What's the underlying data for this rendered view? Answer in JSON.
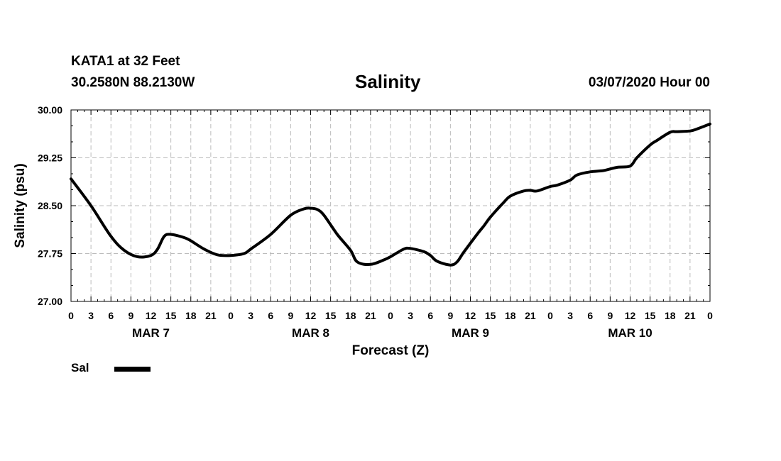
{
  "header": {
    "station": "KATA1 at 32 Feet",
    "coords": "30.2580N 88.2130W",
    "title": "Salinity",
    "datetime": "03/07/2020 Hour 00"
  },
  "legend": {
    "label": "Sal",
    "color": "#000000"
  },
  "chart_data": {
    "type": "line",
    "title": "Salinity",
    "xlabel": "Forecast (Z)",
    "ylabel": "Salinity (psu)",
    "ylim": [
      27.0,
      30.0
    ],
    "xlim_hours": [
      0,
      96
    ],
    "yticks": [
      "27.00",
      "27.75",
      "28.50",
      "29.25",
      "30.00"
    ],
    "ytick_values": [
      27.0,
      27.75,
      28.5,
      29.25,
      30.0
    ],
    "xtick_hours": [
      0,
      3,
      6,
      9,
      12,
      15,
      18,
      21,
      24,
      27,
      30,
      33,
      36,
      39,
      42,
      45,
      48,
      51,
      54,
      57,
      60,
      63,
      66,
      69,
      72,
      75,
      78,
      81,
      84,
      87,
      90,
      93,
      96
    ],
    "xtick_labels": [
      "0",
      "3",
      "6",
      "9",
      "12",
      "15",
      "18",
      "21",
      "0",
      "3",
      "6",
      "9",
      "12",
      "15",
      "18",
      "21",
      "0",
      "3",
      "6",
      "9",
      "12",
      "15",
      "18",
      "21",
      "0",
      "3",
      "6",
      "9",
      "12",
      "15",
      "18",
      "21",
      "0"
    ],
    "day_labels": [
      {
        "label": "MAR 7",
        "hour": 12
      },
      {
        "label": "MAR 8",
        "hour": 36
      },
      {
        "label": "MAR 9",
        "hour": 60
      },
      {
        "label": "MAR 10",
        "hour": 84
      }
    ],
    "grid": true,
    "series": [
      {
        "name": "Sal",
        "x": [
          0,
          3,
          6,
          8,
          10,
          12,
          13,
          14,
          15,
          17,
          18,
          20,
          22,
          24,
          26,
          27,
          30,
          33,
          35,
          36,
          37,
          38,
          40,
          42,
          43,
          45,
          47,
          48,
          50,
          51,
          53,
          54,
          55,
          57,
          58,
          59,
          61,
          62,
          63,
          65,
          66,
          68,
          69,
          70,
          72,
          73,
          75,
          76,
          78,
          80,
          82,
          84,
          85,
          87,
          88,
          90,
          91,
          93,
          94,
          96
        ],
        "y": [
          28.92,
          28.5,
          28.02,
          27.8,
          27.7,
          27.72,
          27.82,
          28.02,
          28.05,
          28.0,
          27.95,
          27.82,
          27.73,
          27.72,
          27.75,
          27.82,
          28.05,
          28.35,
          28.45,
          28.46,
          28.44,
          28.35,
          28.05,
          27.8,
          27.62,
          27.58,
          27.65,
          27.7,
          27.82,
          27.83,
          27.78,
          27.72,
          27.63,
          27.57,
          27.62,
          27.77,
          28.05,
          28.18,
          28.32,
          28.55,
          28.65,
          28.73,
          28.74,
          28.73,
          28.8,
          28.82,
          28.9,
          28.98,
          29.03,
          29.05,
          29.1,
          29.12,
          29.25,
          29.45,
          29.52,
          29.65,
          29.66,
          29.67,
          29.7,
          29.78
        ]
      }
    ]
  }
}
